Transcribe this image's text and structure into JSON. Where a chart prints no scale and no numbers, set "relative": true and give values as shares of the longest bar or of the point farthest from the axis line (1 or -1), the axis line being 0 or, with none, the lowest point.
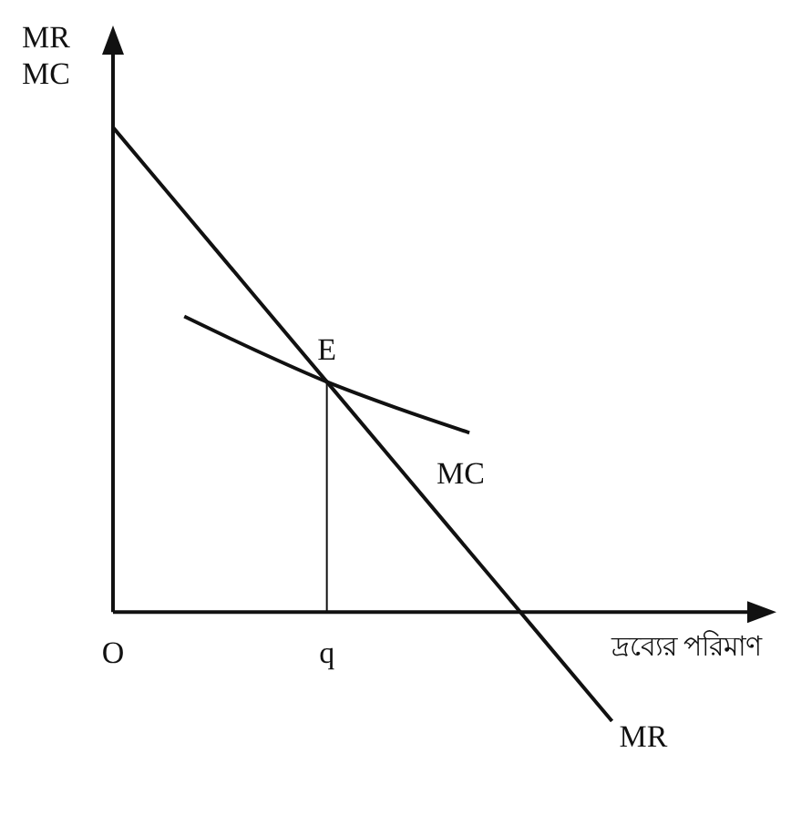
{
  "chart_data": {
    "type": "line",
    "relative": true,
    "ylabel": "MR MC",
    "xlabel": "দ্রব্যের পরিমাণ",
    "categories": [
      "O",
      null,
      null,
      "q",
      null,
      null,
      null,
      null,
      null,
      null
    ],
    "series": [
      {
        "name": "MR",
        "color": "#111111",
        "values": [
          1,
          0.825,
          0.65,
          0.475,
          0.3,
          0.125,
          -0.05,
          -0.225,
          null,
          null
        ]
      },
      {
        "name": "MC",
        "color": "#111111",
        "values": [
          null,
          0.61,
          0.54,
          0.475,
          0.42,
          0.37,
          null,
          null,
          null,
          null
        ]
      }
    ],
    "annotations": [
      {
        "text": "E",
        "x": "q",
        "y": 0.475
      }
    ],
    "ref_lines": [
      {
        "axis": "x",
        "value": "q"
      }
    ],
    "marker": "none",
    "line_style": "solid"
  }
}
